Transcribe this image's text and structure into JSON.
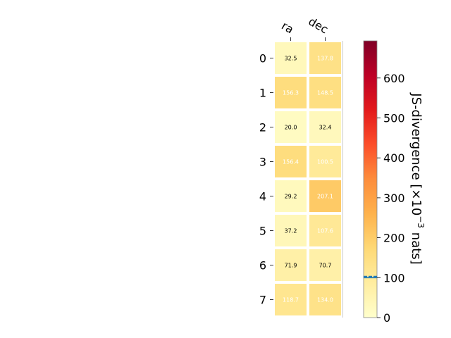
{
  "chart_data": {
    "type": "heatmap",
    "columns": [
      "ra",
      "dec"
    ],
    "rows": [
      "0",
      "1",
      "2",
      "3",
      "4",
      "5",
      "6",
      "7"
    ],
    "values": [
      [
        32.5,
        137.8
      ],
      [
        156.3,
        148.5
      ],
      [
        20.0,
        32.4
      ],
      [
        156.4,
        100.5
      ],
      [
        29.2,
        207.1
      ],
      [
        37.2,
        107.6
      ],
      [
        71.9,
        70.7
      ],
      [
        118.7,
        134.0
      ]
    ],
    "value_labels": [
      [
        "32.5",
        "137.8"
      ],
      [
        "156.3",
        "148.5"
      ],
      [
        "20.0",
        "32.4"
      ],
      [
        "156.4",
        "100.5"
      ],
      [
        "29.2",
        "207.1"
      ],
      [
        "37.2",
        "107.6"
      ],
      [
        "71.9",
        "70.7"
      ],
      [
        "118.7",
        "134.0"
      ]
    ],
    "colorbar": {
      "label_prefix": "JS-divergence [×10",
      "label_exp": "−3",
      "label_suffix": " nats]",
      "range": [
        0,
        693.1
      ],
      "ticks": [
        "0",
        "100",
        "200",
        "300",
        "400",
        "500",
        "600"
      ],
      "colormap": "YlOrRd",
      "reference_lines": [
        100,
        103
      ]
    }
  }
}
